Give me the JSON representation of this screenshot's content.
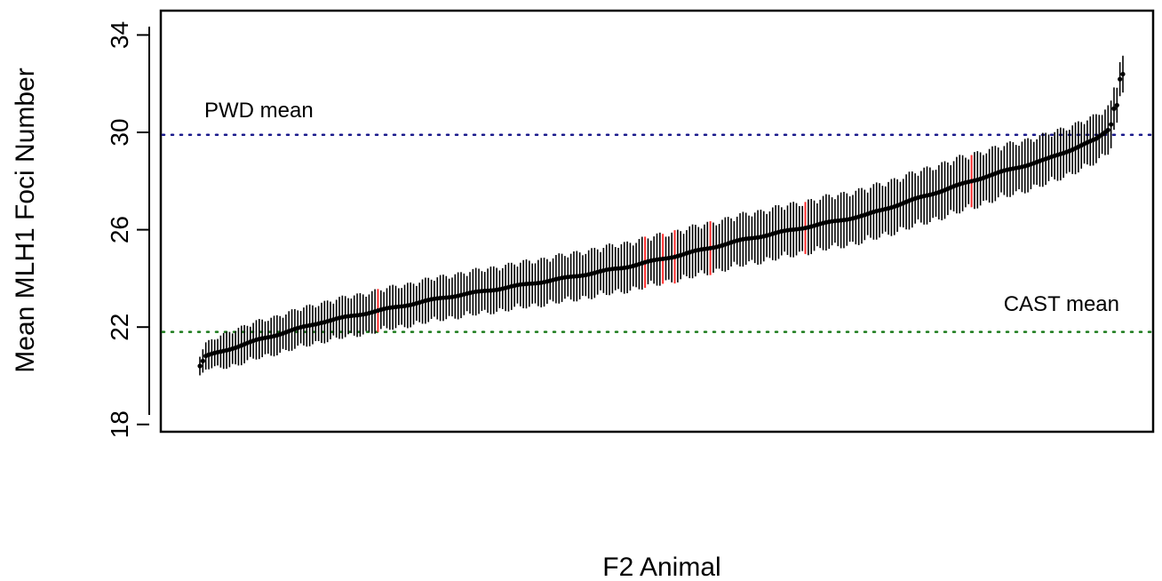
{
  "chart_data": {
    "type": "scatter",
    "xlabel": "F2 Animal",
    "ylabel": "Mean MLH1 Foci Number",
    "ylim": [
      17.7,
      35.0
    ],
    "y_ticks": [
      18,
      22,
      26,
      30,
      34
    ],
    "x_ticks_shown": false,
    "n_animals": 312,
    "grid": false,
    "point_color": "#000000",
    "errorbar_color": "#000000",
    "highlight_color": "#ff2a2a",
    "highlighted_animal_indices": [
      60,
      150,
      156,
      160,
      172,
      204,
      260
    ],
    "point_profile": [
      {
        "rank": 0,
        "y": 20.4
      },
      {
        "rank": 2,
        "y": 20.8
      },
      {
        "rank": 20,
        "y": 21.5
      },
      {
        "rank": 40,
        "y": 22.2
      },
      {
        "rank": 60,
        "y": 22.7
      },
      {
        "rank": 80,
        "y": 23.2
      },
      {
        "rank": 100,
        "y": 23.6
      },
      {
        "rank": 120,
        "y": 24.0
      },
      {
        "rank": 140,
        "y": 24.45
      },
      {
        "rank": 160,
        "y": 25.0
      },
      {
        "rank": 180,
        "y": 25.6
      },
      {
        "rank": 200,
        "y": 26.1
      },
      {
        "rank": 220,
        "y": 26.6
      },
      {
        "rank": 240,
        "y": 27.4
      },
      {
        "rank": 260,
        "y": 28.2
      },
      {
        "rank": 280,
        "y": 28.9
      },
      {
        "rank": 296,
        "y": 29.7
      },
      {
        "rank": 300,
        "y": 30.1
      },
      {
        "rank": 301,
        "y": 30.3
      },
      {
        "rank": 302,
        "y": 31.0
      },
      {
        "rank": 303,
        "y": 31.1
      },
      {
        "rank": 304,
        "y": 32.2
      },
      {
        "rank": 305,
        "y": 32.4
      }
    ],
    "errorbar_halfwidth": [
      {
        "rank": 0,
        "value": 0.45
      },
      {
        "rank": 10,
        "value": 0.7
      },
      {
        "rank": 60,
        "value": 0.8
      },
      {
        "rank": 150,
        "value": 0.95
      },
      {
        "rank": 250,
        "value": 1.05
      },
      {
        "rank": 300,
        "value": 0.9
      },
      {
        "rank": 305,
        "value": 0.7
      }
    ],
    "reference_lines": [
      {
        "label": "PWD mean",
        "value": 29.9,
        "color": "#1a1a8c",
        "style": "dotted"
      },
      {
        "label": "CAST mean",
        "value": 21.8,
        "color": "#1a7a1a",
        "style": "dotted"
      }
    ]
  }
}
